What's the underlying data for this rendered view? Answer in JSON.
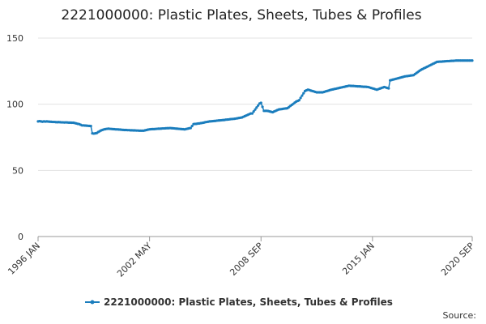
{
  "chart_data": {
    "type": "line",
    "title": "2221000000: Plastic Plates, Sheets, Tubes & Profiles",
    "source": "Source:",
    "categories": [
      "1996 JAN",
      null,
      null,
      null,
      null,
      null,
      null,
      null,
      null,
      null,
      null,
      null,
      null,
      null,
      null,
      null,
      null,
      null,
      null,
      null,
      null,
      null,
      null,
      null,
      null,
      null,
      null,
      null,
      null,
      null,
      null,
      null,
      null,
      null,
      null,
      null,
      null,
      null,
      null,
      null,
      null,
      null,
      null,
      null,
      null,
      null,
      null,
      null,
      null,
      null,
      null,
      null,
      null,
      null,
      null,
      null,
      null,
      null,
      null,
      null,
      null,
      null,
      null,
      null,
      null,
      null,
      null,
      null,
      null,
      null,
      null,
      null,
      null,
      null,
      null,
      null,
      "2002 MAY",
      null,
      null,
      null,
      null,
      null,
      null,
      null,
      null,
      null,
      null,
      null,
      null,
      null,
      null,
      null,
      null,
      null,
      null,
      null,
      null,
      null,
      null,
      null,
      null,
      null,
      null,
      null,
      null,
      null,
      null,
      null,
      null,
      null,
      null,
      null,
      null,
      null,
      null,
      null,
      null,
      null,
      null,
      null,
      null,
      null,
      null,
      null,
      null,
      null,
      null,
      null,
      null,
      null,
      null,
      null,
      null,
      null,
      null,
      null,
      null,
      null,
      null,
      null,
      null,
      null,
      null,
      null,
      null,
      null,
      null,
      null,
      null,
      null,
      null,
      null,
      "2008 SEP",
      null,
      null,
      null,
      null,
      null,
      null,
      null,
      null,
      null,
      null,
      null,
      null,
      null,
      null,
      null,
      null,
      null,
      null,
      null,
      null,
      null,
      null,
      null,
      null,
      null,
      null,
      null,
      null,
      null,
      null,
      null,
      null,
      null,
      null,
      null,
      null,
      null,
      null,
      null,
      null,
      null,
      null,
      null,
      null,
      null,
      null,
      null,
      null,
      null,
      null,
      null,
      null,
      null,
      null,
      null,
      null,
      null,
      null,
      null,
      null,
      null,
      null,
      null,
      null,
      null,
      null,
      null,
      null,
      null,
      null,
      null,
      null,
      null,
      null,
      null,
      "2015 JAN",
      null,
      null,
      null,
      null,
      null,
      null,
      null,
      null,
      null,
      null,
      null,
      null,
      null,
      null,
      null,
      null,
      null,
      null,
      null,
      null,
      null,
      null,
      null,
      null,
      null,
      null,
      null,
      null,
      null,
      null,
      null,
      null,
      null,
      null,
      null,
      null,
      null,
      null,
      null,
      null,
      null,
      null,
      null,
      null,
      null,
      null,
      null,
      null,
      null,
      null,
      null,
      null,
      null,
      null,
      null,
      null,
      null,
      null,
      null,
      null,
      null,
      null,
      null,
      null,
      null,
      null,
      null,
      "2020 SEP"
    ],
    "series": [
      {
        "name": "2221000000: Plastic Plates, Sheets, Tubes & Profiles",
        "color": "#1a7dbd",
        "values": [
          87,
          87.2,
          87,
          86.8,
          87,
          86.9,
          87,
          86.9,
          86.8,
          86.7,
          86.6,
          86.6,
          86.5,
          86.4,
          86.5,
          86.4,
          86.3,
          86.3,
          86.2,
          86.3,
          86.2,
          86.1,
          86.1,
          86,
          86,
          85.8,
          85.5,
          85.2,
          85,
          84.5,
          84,
          84,
          83.9,
          83.8,
          83.7,
          83.6,
          83.5,
          78,
          77.8,
          78,
          78.2,
          79,
          79.6,
          80.2,
          80.6,
          81,
          81.2,
          81.4,
          81.5,
          81.4,
          81.3,
          81.2,
          81.1,
          81,
          81,
          80.9,
          80.8,
          80.7,
          80.6,
          80.5,
          80.5,
          80.4,
          80.4,
          80.3,
          80.3,
          80.2,
          80.2,
          80.1,
          80.1,
          80,
          80,
          80,
          80,
          80.3,
          80.5,
          80.8,
          81,
          81.1,
          81.2,
          81.2,
          81.3,
          81.4,
          81.5,
          81.5,
          81.6,
          81.7,
          81.7,
          81.8,
          81.9,
          81.9,
          82,
          81.9,
          81.8,
          81.7,
          81.6,
          81.5,
          81.4,
          81.3,
          81.2,
          81.1,
          81,
          81.3,
          81.5,
          81.8,
          82,
          83.5,
          85,
          85.1,
          85.2,
          85.4,
          85.5,
          85.7,
          85.9,
          86.1,
          86.4,
          86.6,
          86.8,
          87,
          87.1,
          87.2,
          87.3,
          87.4,
          87.6,
          87.7,
          87.8,
          87.9,
          88,
          88.1,
          88.3,
          88.4,
          88.5,
          88.7,
          88.8,
          88.9,
          89,
          89.2,
          89.4,
          89.6,
          89.8,
          90,
          90.5,
          91,
          91.5,
          92,
          92.5,
          93,
          93,
          94.5,
          96,
          97.5,
          99,
          100.5,
          101,
          98,
          95,
          95,
          95,
          94.8,
          94.5,
          94.2,
          94,
          94.5,
          95,
          95.5,
          96,
          96.2,
          96.3,
          96.5,
          96.7,
          96.8,
          97,
          97.8,
          98.7,
          99.5,
          100.3,
          101.2,
          102,
          102.5,
          103,
          104.8,
          106.5,
          108.3,
          110,
          110.5,
          111,
          110.7,
          110.3,
          110,
          109.7,
          109.3,
          109,
          109,
          109,
          109,
          109,
          109.3,
          109.7,
          110,
          110.3,
          110.7,
          111,
          111.2,
          111.5,
          111.7,
          112,
          112.2,
          112.5,
          112.7,
          113,
          113.2,
          113.5,
          113.7,
          114,
          113.9,
          113.8,
          113.8,
          113.7,
          113.6,
          113.5,
          113.5,
          113.4,
          113.3,
          113.2,
          113.2,
          113.1,
          113,
          112.7,
          112.3,
          112,
          111.7,
          111.3,
          111,
          111.4,
          111.8,
          112.2,
          112.6,
          113,
          112.7,
          112.3,
          112,
          118,
          118.3,
          118.6,
          118.9,
          119.2,
          119.5,
          119.8,
          120.1,
          120.4,
          120.7,
          121,
          121.2,
          121.3,
          121.5,
          121.7,
          121.8,
          122,
          122.8,
          123.6,
          124.4,
          125.2,
          126,
          126.5,
          127.1,
          127.6,
          128.2,
          128.7,
          129.3,
          129.8,
          130.4,
          130.9,
          131.5,
          132,
          132.1,
          132.2,
          132.2,
          132.3,
          132.4,
          132.5,
          132.6,
          132.6,
          132.7,
          132.8,
          132.8,
          132.9,
          133,
          133,
          133,
          133,
          133,
          133,
          133,
          133,
          133,
          133,
          133,
          133
        ]
      }
    ],
    "ylim": [
      0,
      150
    ],
    "yticks": [
      0,
      50,
      100,
      150
    ],
    "grid": true
  }
}
